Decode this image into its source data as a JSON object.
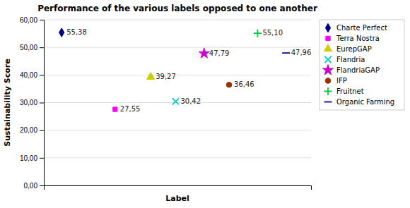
{
  "chart_data": {
    "type": "scatter",
    "title": "Performance of the various labels opposed to one another",
    "xlabel": "Label",
    "ylabel": "Sustainability Score",
    "xlim": [
      0.5,
      8.0
    ],
    "ylim": [
      0,
      60
    ],
    "yticks": [
      {
        "value": 0,
        "label": "0,00"
      },
      {
        "value": 10,
        "label": "10,00"
      },
      {
        "value": 20,
        "label": "20,00"
      },
      {
        "value": 30,
        "label": "30,00"
      },
      {
        "value": 40,
        "label": "40,00"
      },
      {
        "value": 50,
        "label": "50,00"
      },
      {
        "value": 60,
        "label": "60,00"
      }
    ],
    "tick_labels": "y",
    "grid": true,
    "legend": "right",
    "data_labels": true,
    "series": [
      {
        "name": "Charte Perfect",
        "color": "#000080",
        "marker": "diamond",
        "x": [
          1
        ],
        "values": [
          55.38
        ],
        "value_labels": [
          "55,38"
        ]
      },
      {
        "name": "Terra Nostra",
        "color": "#FF00FF",
        "marker": "square",
        "x": [
          2.5
        ],
        "values": [
          27.55
        ],
        "value_labels": [
          "27,55"
        ]
      },
      {
        "name": "EurepGAP",
        "color": "#CCCC00",
        "marker": "triangle",
        "x": [
          3.5
        ],
        "values": [
          39.27
        ],
        "value_labels": [
          "39,27"
        ]
      },
      {
        "name": "Flandria",
        "color": "#00CCCC",
        "marker": "x",
        "x": [
          4.2
        ],
        "values": [
          30.42
        ],
        "value_labels": [
          "30,42"
        ]
      },
      {
        "name": "FlandriaGAP",
        "color": "#CC00CC",
        "marker": "star",
        "x": [
          5.0
        ],
        "values": [
          47.79
        ],
        "value_labels": [
          "47,79"
        ]
      },
      {
        "name": "IFP",
        "color": "#993300",
        "marker": "circle",
        "x": [
          5.7
        ],
        "values": [
          36.46
        ],
        "value_labels": [
          "36,46"
        ]
      },
      {
        "name": "Fruitnet",
        "color": "#00CC44",
        "marker": "plus",
        "x": [
          6.5
        ],
        "values": [
          55.1
        ],
        "value_labels": [
          "55,10"
        ]
      },
      {
        "name": "Organic Farming",
        "color": "#000080",
        "marker": "hline",
        "x": [
          7.3
        ],
        "values": [
          47.96
        ],
        "value_labels": [
          "47,96"
        ]
      }
    ]
  }
}
